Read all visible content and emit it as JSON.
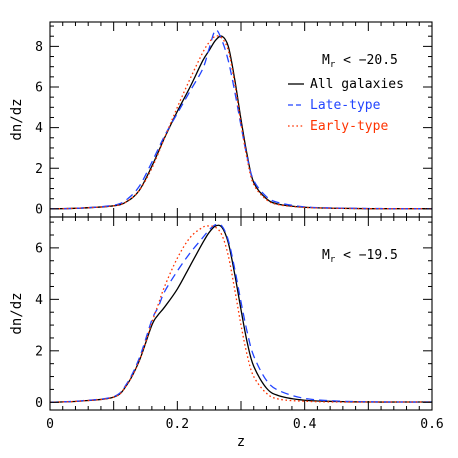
{
  "chart_data": [
    {
      "type": "line",
      "panel": "top",
      "annotation": "M",
      "annotation_sub": "r",
      "annotation_rest": " < −20.5",
      "xlabel": "",
      "ylabel": "dn/dz",
      "xlim": [
        0,
        0.6
      ],
      "ylim": [
        -0.4,
        9.2
      ],
      "x_ticks": [
        "0",
        "0.2",
        "0.4",
        "0.6"
      ],
      "show_x_tick_labels": false,
      "y_ticks": [
        "0",
        "2",
        "4",
        "6",
        "8"
      ],
      "y_tick_values": [
        0,
        2,
        4,
        6,
        8
      ],
      "legend_position": "top-right",
      "series": [
        {
          "name": "All galaxies",
          "color": "#000000",
          "dash": "solid",
          "x": [
            0.0,
            0.05,
            0.1,
            0.12,
            0.14,
            0.16,
            0.18,
            0.2,
            0.22,
            0.24,
            0.25,
            0.26,
            0.27,
            0.28,
            0.29,
            0.3,
            0.31,
            0.32,
            0.34,
            0.36,
            0.4,
            0.45,
            0.5,
            0.55,
            0.6
          ],
          "y": [
            0.0,
            0.04,
            0.15,
            0.35,
            0.9,
            2.1,
            3.5,
            4.8,
            6.0,
            7.3,
            7.8,
            8.3,
            8.5,
            8.0,
            6.4,
            4.4,
            2.6,
            1.3,
            0.5,
            0.22,
            0.08,
            0.03,
            0.01,
            0.01,
            0.01
          ]
        },
        {
          "name": "Late-type",
          "color": "#2244ff",
          "dash": "dashed",
          "x": [
            0.0,
            0.05,
            0.1,
            0.12,
            0.14,
            0.16,
            0.18,
            0.2,
            0.22,
            0.24,
            0.25,
            0.26,
            0.27,
            0.28,
            0.29,
            0.3,
            0.31,
            0.32,
            0.34,
            0.36,
            0.4,
            0.45,
            0.5,
            0.55,
            0.6
          ],
          "y": [
            0.0,
            0.04,
            0.18,
            0.45,
            1.1,
            2.3,
            3.6,
            4.7,
            5.8,
            6.9,
            7.9,
            8.8,
            8.3,
            7.3,
            5.8,
            4.1,
            2.5,
            1.4,
            0.6,
            0.3,
            0.1,
            0.04,
            0.02,
            0.01,
            0.01
          ]
        },
        {
          "name": "Early-type",
          "color": "#ff3300",
          "dash": "dotted",
          "x": [
            0.0,
            0.05,
            0.1,
            0.12,
            0.14,
            0.16,
            0.18,
            0.2,
            0.22,
            0.24,
            0.25,
            0.26,
            0.27,
            0.28,
            0.29,
            0.3,
            0.31,
            0.32,
            0.34,
            0.36,
            0.4,
            0.45,
            0.5,
            0.55,
            0.6
          ],
          "y": [
            0.0,
            0.04,
            0.15,
            0.35,
            0.9,
            2.0,
            3.5,
            5.0,
            6.4,
            7.7,
            8.2,
            8.5,
            8.4,
            7.8,
            6.2,
            4.2,
            2.4,
            1.2,
            0.45,
            0.2,
            0.07,
            0.03,
            0.01,
            0.01,
            0.01
          ]
        }
      ]
    },
    {
      "type": "line",
      "panel": "bottom",
      "annotation": "M",
      "annotation_sub": "r",
      "annotation_rest": " < −19.5",
      "xlabel": "z",
      "ylabel": "dn/dz",
      "xlim": [
        0,
        0.6
      ],
      "ylim": [
        -0.3,
        7.2
      ],
      "x_ticks": [
        "0",
        "0.2",
        "0.4",
        "0.6"
      ],
      "x_tick_values": [
        0,
        0.2,
        0.4,
        0.6
      ],
      "show_x_tick_labels": true,
      "y_ticks": [
        "0",
        "2",
        "4",
        "6"
      ],
      "y_tick_values": [
        0,
        2,
        4,
        6
      ],
      "series": [
        {
          "name": "All galaxies",
          "color": "#000000",
          "dash": "solid",
          "x": [
            0.0,
            0.05,
            0.1,
            0.12,
            0.14,
            0.16,
            0.17,
            0.18,
            0.2,
            0.22,
            0.24,
            0.25,
            0.26,
            0.27,
            0.28,
            0.29,
            0.3,
            0.31,
            0.32,
            0.34,
            0.36,
            0.4,
            0.45,
            0.5,
            0.55,
            0.6
          ],
          "y": [
            0.0,
            0.05,
            0.2,
            0.65,
            1.6,
            3.0,
            3.4,
            3.7,
            4.4,
            5.3,
            6.2,
            6.6,
            6.85,
            6.8,
            6.2,
            5.0,
            3.6,
            2.3,
            1.4,
            0.55,
            0.25,
            0.08,
            0.03,
            0.01,
            0.01,
            0.01
          ]
        },
        {
          "name": "Late-type",
          "color": "#2244ff",
          "dash": "dashed",
          "x": [
            0.0,
            0.05,
            0.1,
            0.12,
            0.14,
            0.16,
            0.17,
            0.18,
            0.2,
            0.22,
            0.24,
            0.25,
            0.26,
            0.27,
            0.28,
            0.29,
            0.3,
            0.31,
            0.32,
            0.34,
            0.36,
            0.4,
            0.45,
            0.5,
            0.55,
            0.6
          ],
          "y": [
            0.0,
            0.06,
            0.22,
            0.7,
            1.7,
            3.2,
            3.7,
            4.3,
            5.1,
            5.8,
            6.4,
            6.7,
            6.9,
            6.85,
            6.3,
            5.2,
            3.9,
            2.7,
            1.8,
            0.85,
            0.45,
            0.15,
            0.05,
            0.02,
            0.01,
            0.01
          ]
        },
        {
          "name": "Early-type",
          "color": "#ff3300",
          "dash": "dotted",
          "x": [
            0.0,
            0.05,
            0.1,
            0.12,
            0.14,
            0.16,
            0.17,
            0.18,
            0.2,
            0.22,
            0.24,
            0.25,
            0.26,
            0.27,
            0.28,
            0.29,
            0.3,
            0.31,
            0.32,
            0.34,
            0.36,
            0.4,
            0.45,
            0.5,
            0.55,
            0.6
          ],
          "y": [
            0.0,
            0.05,
            0.2,
            0.65,
            1.6,
            3.1,
            3.8,
            4.5,
            5.6,
            6.4,
            6.8,
            6.85,
            6.8,
            6.5,
            5.7,
            4.4,
            3.0,
            1.8,
            1.0,
            0.35,
            0.12,
            0.04,
            0.01,
            0.01,
            0.01,
            0.01
          ]
        }
      ]
    }
  ]
}
